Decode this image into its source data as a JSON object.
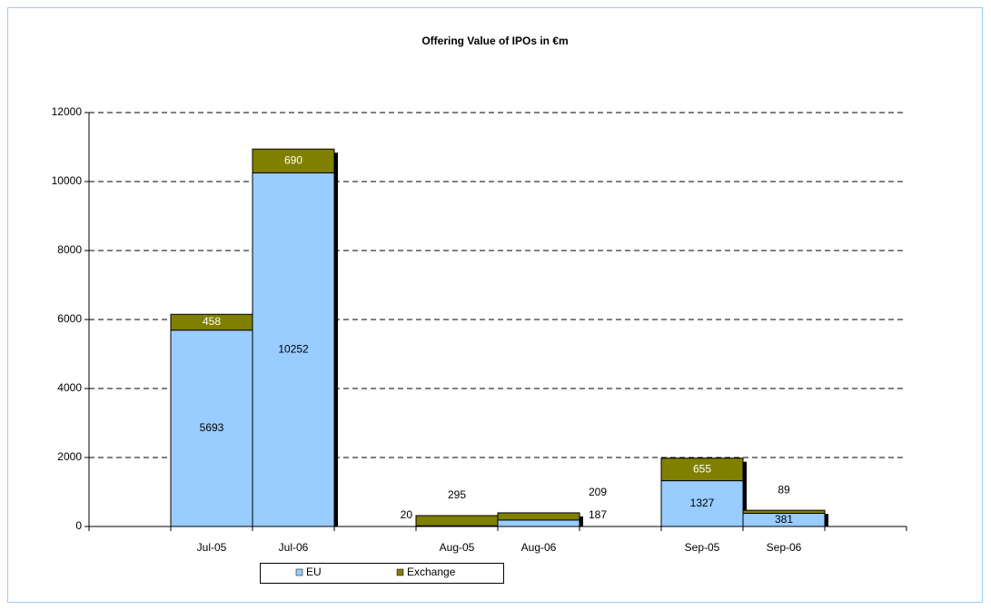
{
  "chart_data": {
    "type": "stacked_bar",
    "title": "Offering Value of IPOs in €m",
    "categories": [
      null,
      "Jul-05",
      "Jul-06",
      null,
      "Aug-05",
      "Aug-06",
      null,
      "Sep-05",
      "Sep-06",
      null
    ],
    "series": [
      {
        "name": "EU",
        "color": "#99ccff",
        "values": [
          null,
          5693,
          10252,
          null,
          20,
          187,
          null,
          1327,
          381,
          null
        ]
      },
      {
        "name": "Exchange",
        "color": "#808000",
        "values": [
          null,
          458,
          690,
          null,
          295,
          209,
          null,
          655,
          89,
          null
        ]
      }
    ],
    "ylim": [
      0,
      12000
    ],
    "yticks": [
      0,
      2000,
      4000,
      6000,
      8000,
      10000,
      12000
    ],
    "grid": true,
    "legend": "bottom"
  }
}
